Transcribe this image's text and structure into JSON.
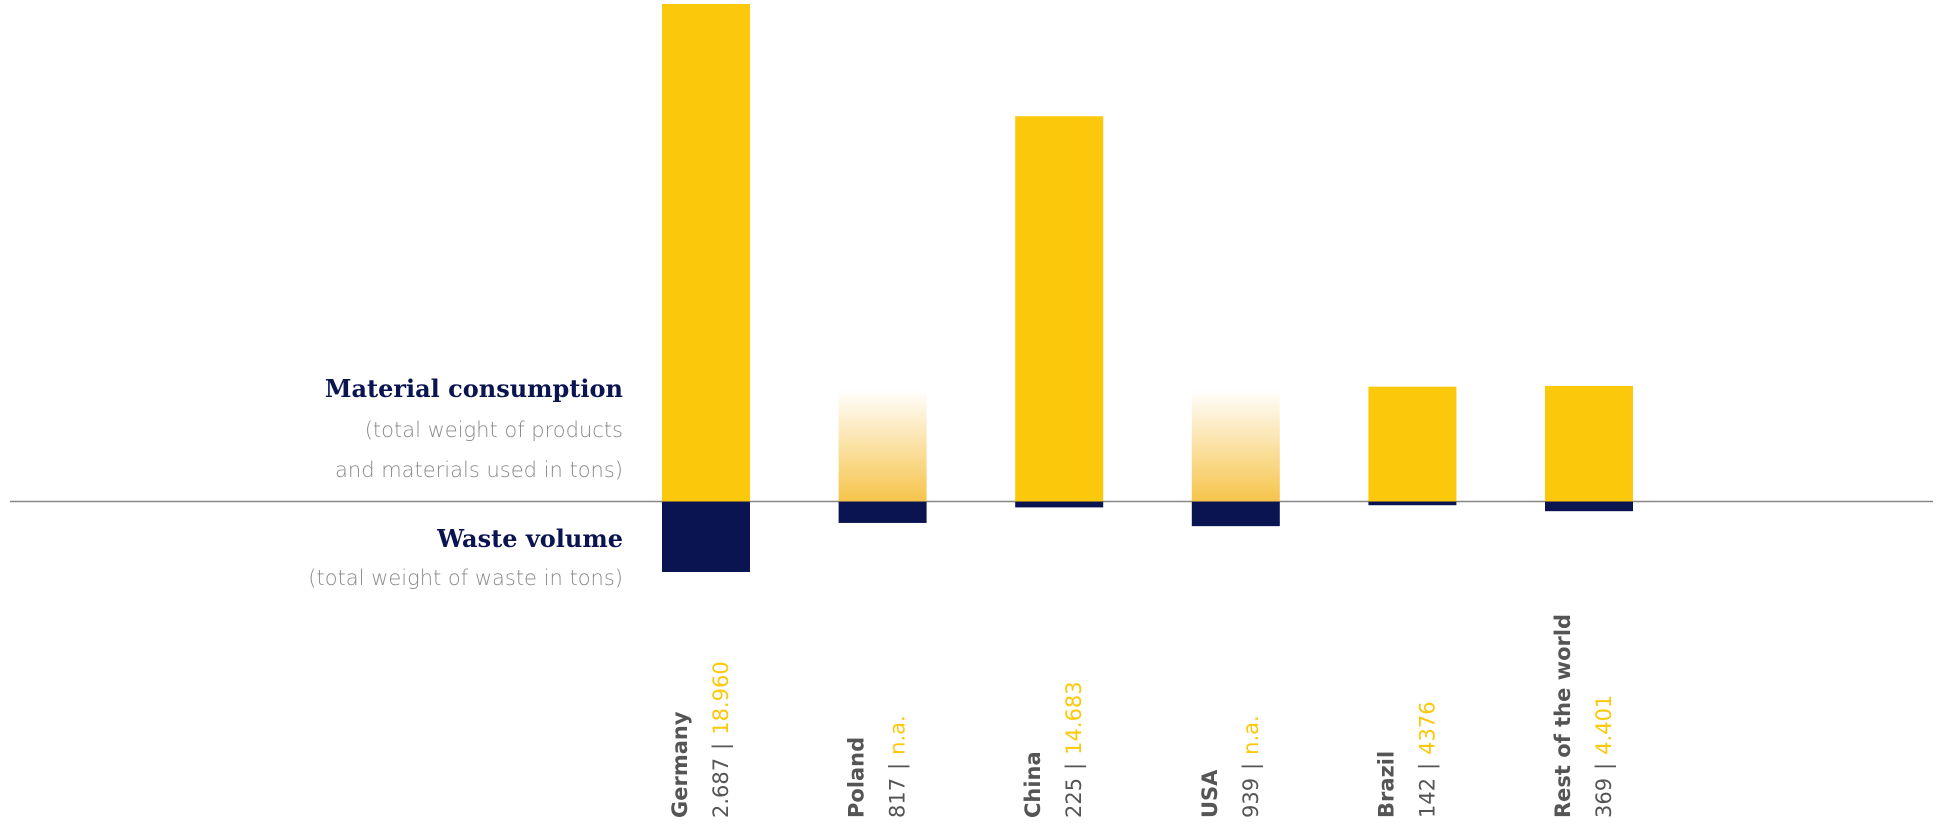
{
  "chart_data": {
    "type": "bar",
    "labels": {
      "positive_title": "Material consumption",
      "positive_note_1": "(total weight of products",
      "positive_note_2": "and materials used in tons)",
      "negative_title": "Waste volume",
      "negative_note": "(total weight of waste in tons)"
    },
    "separator": "|",
    "categories": [
      "Germany",
      "Poland",
      "China",
      "USA",
      "Brazil",
      "Rest of the world"
    ],
    "series": [
      {
        "name": "Material consumption",
        "color": "#fcc80b",
        "values": [
          18960,
          null,
          14683,
          null,
          4376,
          4401
        ],
        "value_labels": [
          "18.960",
          "n.a.",
          "14.683",
          "n.a.",
          "4376",
          "4.401"
        ]
      },
      {
        "name": "Waste volume",
        "color": "#0a1450",
        "values": [
          2687,
          817,
          225,
          939,
          142,
          369
        ],
        "value_labels": [
          "2.687",
          "817",
          "225",
          "939",
          "142",
          "369"
        ]
      }
    ]
  }
}
